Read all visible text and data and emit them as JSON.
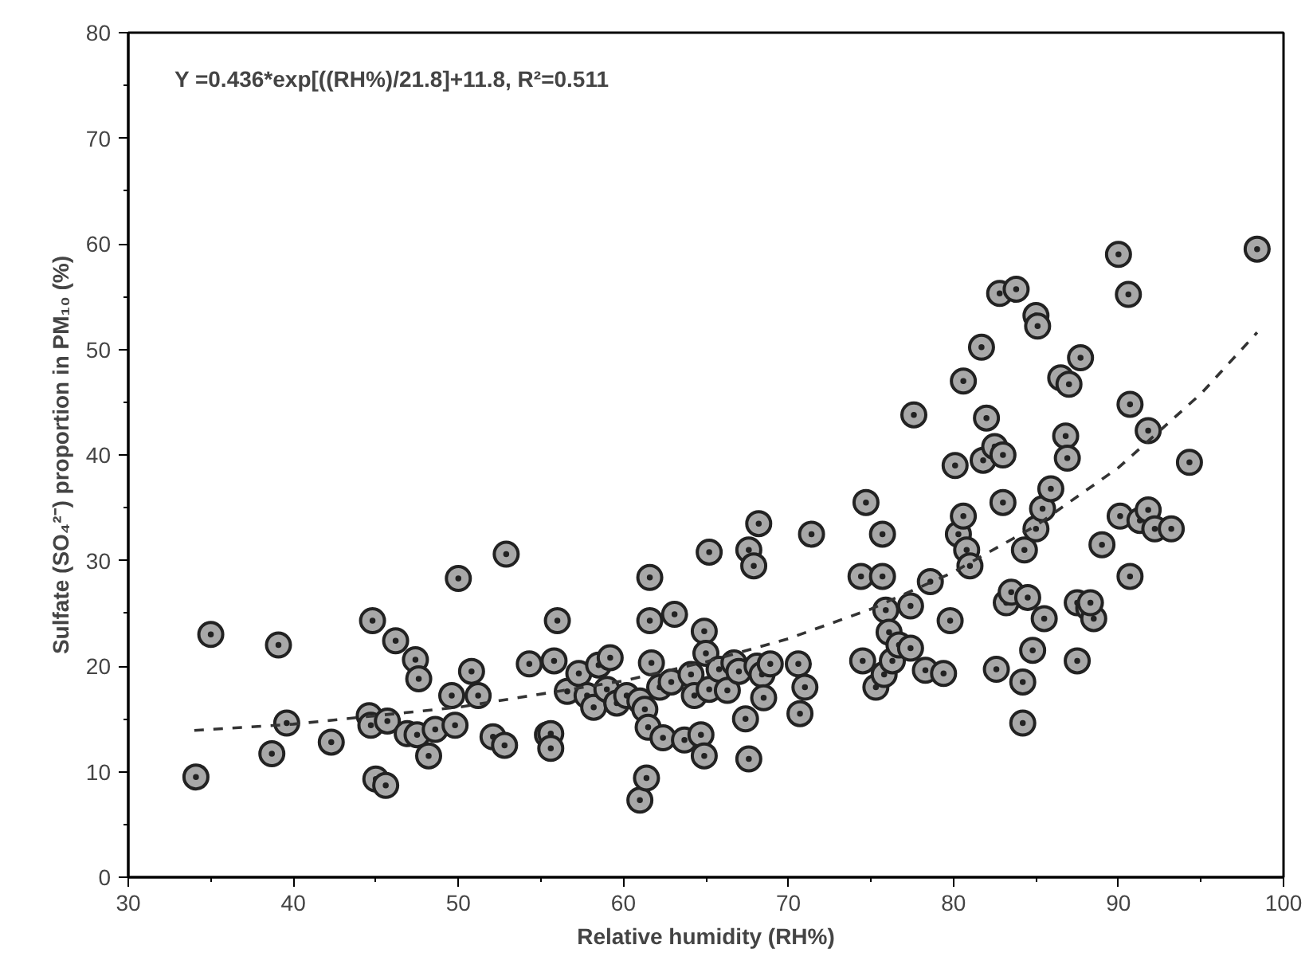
{
  "chart_data": {
    "type": "scatter",
    "xlabel": "Relative humidity (RH%)",
    "ylabel": "Sulfate (SO₄²⁻) proportion in PM₁₀ (%)",
    "annotations": [
      "Y =0.436*exp[((RH%)/21.8]+11.8, R²=0.511"
    ],
    "xlim": [
      30,
      100
    ],
    "xticks": [
      30,
      40,
      50,
      60,
      70,
      80,
      90,
      100
    ],
    "ylim": [
      0,
      80
    ],
    "yticks": [
      0,
      10,
      20,
      30,
      40,
      50,
      60,
      70,
      80
    ],
    "grid": false,
    "marker": "circle",
    "series": [
      {
        "color": "#a8a8a8",
        "x": [
          34.1,
          35,
          38.7,
          39.1,
          39.6,
          42.3,
          44.6,
          44.7,
          44.8,
          45,
          45.6,
          45.7,
          46.2,
          46.9,
          47.4,
          47.6,
          47.5,
          48.2,
          48.6,
          49.6,
          49.8,
          50,
          50.8,
          51.2,
          52.1,
          52.9,
          52.8,
          54.3,
          55.4,
          55.6,
          55.6,
          55.8,
          56,
          56.6,
          57.3,
          57.8,
          58.2,
          58.5,
          59,
          59.2,
          59.6,
          60.2,
          61,
          61.3,
          61,
          61.4,
          61.5,
          61.6,
          61.6,
          61.7,
          62.2,
          62.4,
          63.1,
          62.9,
          63.7,
          64.1,
          64.3,
          64.9,
          65,
          65.2,
          65.2,
          64.7,
          64.9,
          65.8,
          66.3,
          66.7,
          67,
          67.6,
          67.4,
          67.6,
          67.9,
          68.2,
          68.1,
          68.4,
          68.5,
          68.9,
          70.6,
          71,
          71.4,
          70.7,
          74.4,
          74.7,
          74.5,
          75.3,
          75.8,
          75.7,
          75.7,
          75.9,
          76.1,
          76.3,
          76.7,
          77.4,
          77.4,
          77.6,
          78.6,
          78.3,
          79.4,
          79.8,
          80.1,
          80.3,
          80.6,
          80.6,
          80.8,
          81,
          81.7,
          81.8,
          82,
          82.5,
          82.6,
          83,
          83,
          82.8,
          83.8,
          83.2,
          83.5,
          84.2,
          84.2,
          84.3,
          84.5,
          84.8,
          85,
          85,
          85.1,
          85.4,
          85.5,
          85.9,
          86.5,
          86.8,
          87,
          86.9,
          87.5,
          87.5,
          87.7,
          88.2,
          88.5,
          88.3,
          89,
          90,
          90.1,
          90.7,
          90.6,
          90.7,
          91.3,
          91.8,
          91.8,
          92.2,
          93.2,
          94.3,
          98.4
        ],
        "values": [
          9.5,
          23,
          11.7,
          22,
          14.6,
          12.8,
          15.3,
          14.4,
          24.3,
          9.3,
          8.7,
          14.8,
          22.4,
          13.6,
          20.6,
          18.8,
          13.5,
          11.5,
          14,
          17.2,
          14.4,
          28.3,
          19.5,
          17.2,
          13.3,
          30.6,
          12.5,
          20.2,
          13.5,
          13.6,
          12.2,
          20.5,
          24.3,
          17.6,
          19.3,
          17.2,
          16.1,
          20.1,
          17.8,
          20.8,
          16.5,
          17.2,
          16.7,
          15.9,
          7.3,
          9.4,
          14.2,
          28.4,
          24.3,
          20.3,
          18,
          13.2,
          24.9,
          18.5,
          13,
          19.2,
          17.2,
          23.3,
          21.2,
          17.8,
          30.8,
          13.5,
          11.5,
          19.7,
          17.7,
          20.3,
          19.5,
          31,
          15,
          11.2,
          29.5,
          33.5,
          20,
          19.2,
          17,
          20.2,
          20.2,
          18,
          32.5,
          15.5,
          28.5,
          35.5,
          20.5,
          18,
          19.2,
          32.5,
          28.5,
          25.3,
          23.2,
          20.5,
          22,
          25.7,
          21.7,
          43.8,
          28,
          19.6,
          19.3,
          24.3,
          39,
          32.5,
          47,
          34.2,
          31,
          29.5,
          50.2,
          39.5,
          43.5,
          40.8,
          19.7,
          35.5,
          40,
          55.3,
          55.7,
          26,
          27,
          18.5,
          14.6,
          31,
          26.5,
          21.5,
          33,
          53.2,
          52.2,
          34.9,
          24.5,
          36.8,
          47.3,
          41.8,
          46.7,
          39.7,
          26,
          20.5,
          49.2,
          25.5,
          24.5,
          26,
          31.5,
          59,
          34.2,
          28.5,
          55.2,
          44.8,
          33.8,
          34.8,
          42.3,
          33,
          33,
          39.3,
          59.5
        ]
      },
      {
        "type": "line",
        "color": "#333333",
        "line_style": "dashed",
        "marker": "none",
        "x": [
          34,
          40,
          50,
          60,
          65,
          70,
          75,
          80,
          85,
          90,
          95,
          98.4
        ],
        "values": [
          13.9,
          14.5,
          16.1,
          18.6,
          20.4,
          22.6,
          25.4,
          28.9,
          33.3,
          38.8,
          45.8,
          51.6
        ]
      }
    ]
  }
}
